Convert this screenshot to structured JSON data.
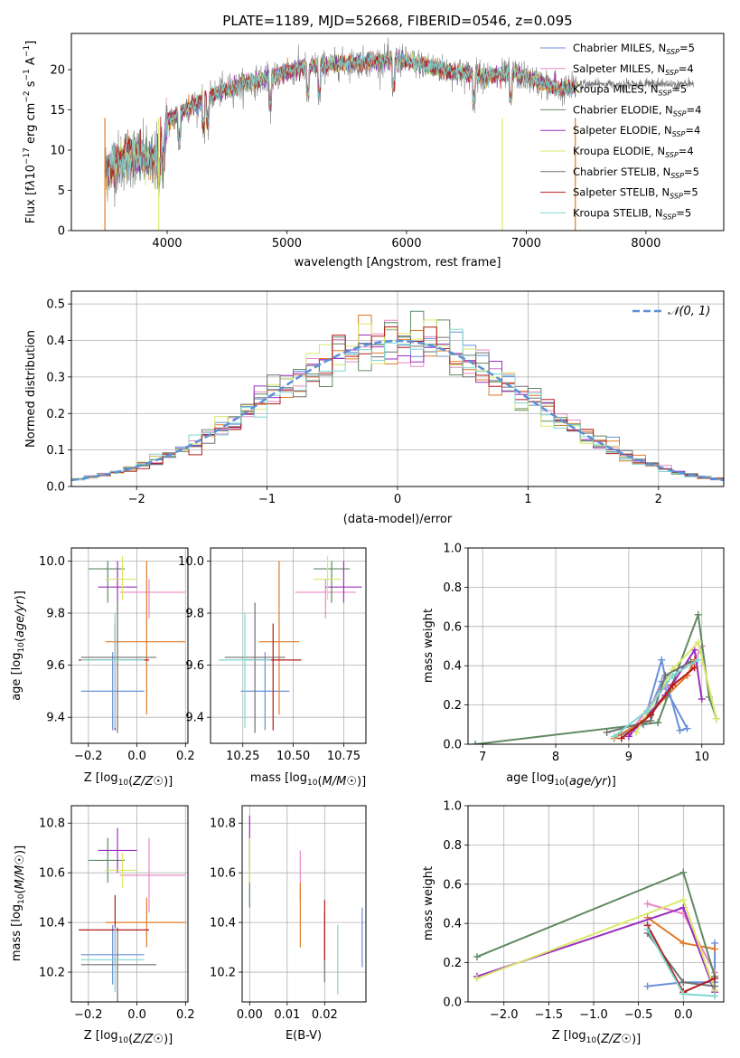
{
  "colors": {
    "chabrier_miles": "#6a8fd8",
    "salpeter_miles": "#e889c4",
    "kroupa_miles": "#e07a28",
    "chabrier_elodie": "#5f8a62",
    "salpeter_elodie": "#9b2fbf",
    "kroupa_elodie": "#d9e86a",
    "chabrier_stelib": "#707070",
    "salpeter_stelib": "#b31b1b",
    "kroupa_stelib": "#7fd6d0",
    "normal": "#5b8fd6"
  },
  "chart_data": [
    {
      "type": "line",
      "title": "PLATE=1189, MJD=52668, FIBERID=0546, z=0.095",
      "xlabel": "wavelength [Angstrom, rest frame]",
      "ylabel_html": "Flux [f<tspan font-style='italic'>λ</tspan>10<tspan dy='-6' font-size='9'>−17</tspan><tspan dy='6'> erg cm</tspan><tspan dy='-6' font-size='9'>−2</tspan><tspan dy='6'> s</tspan><tspan dy='-6' font-size='9'>−1</tspan><tspan dy='6'> A</tspan><tspan dy='-6' font-size='9'>−1</tspan><tspan dy='6'>]</tspan>",
      "xlim": [
        3200,
        8650
      ],
      "ylim": [
        0,
        24.5
      ],
      "xticks": [
        4000,
        5000,
        6000,
        7000,
        8000
      ],
      "yticks": [
        0,
        5,
        10,
        15,
        20
      ],
      "grid": false,
      "legend_position": "right",
      "series": [
        {
          "name": "Chabrier MILES, N",
          "sub": "SSP",
          "tail": "=5"
        },
        {
          "name": "Salpeter MILES, N",
          "sub": "SSP",
          "tail": "=4"
        },
        {
          "name": "Kroupa MILES, N",
          "sub": "SSP",
          "tail": "=5"
        },
        {
          "name": "Chabrier ELODIE, N",
          "sub": "SSP",
          "tail": "=4"
        },
        {
          "name": "Salpeter ELODIE, N",
          "sub": "SSP",
          "tail": "=4"
        },
        {
          "name": "Kroupa ELODIE, N",
          "sub": "SSP",
          "tail": "=4"
        },
        {
          "name": "Chabrier STELIB, N",
          "sub": "SSP",
          "tail": "=5"
        },
        {
          "name": "Salpeter STELIB, N",
          "sub": "SSP",
          "tail": "=5"
        },
        {
          "name": "Kroupa STELIB, N",
          "sub": "SSP",
          "tail": "=5"
        }
      ],
      "continuum": {
        "x": [
          3480,
          3600,
          3700,
          3800,
          3900,
          3950,
          4000,
          4100,
          4200,
          4300,
          4400,
          4500,
          4700,
          4900,
          5100,
          5300,
          5500,
          5700,
          5900,
          6100,
          6300,
          6500,
          6700,
          6900,
          7100,
          7300,
          7400
        ],
        "y": [
          7.5,
          8.5,
          9.5,
          9.0,
          8.5,
          11,
          13.5,
          14.5,
          15.5,
          16.2,
          17,
          17.6,
          18.4,
          19.2,
          20.2,
          20.5,
          20.8,
          21,
          21.2,
          20.8,
          20,
          19.5,
          19.2,
          19.5,
          18.5,
          17.5,
          17.8
        ]
      }
    },
    {
      "type": "histogram",
      "xlabel": "(data-model)/error",
      "ylabel": "Normed distribution",
      "xlim": [
        -2.5,
        2.5
      ],
      "ylim": [
        0,
        0.535
      ],
      "xticks": [
        -2,
        -1,
        0,
        1,
        2
      ],
      "yticks": [
        0.0,
        0.1,
        0.2,
        0.3,
        0.4,
        0.5
      ],
      "grid": true,
      "legend_position": "top-right",
      "legend": "𝒩(0, 1)",
      "bin_width": 0.1,
      "reference_curve": "normal pdf, mean 0, sigma 1"
    },
    {
      "type": "scatter",
      "xlabel": "Z [log₁₀(Z/Z☉)]",
      "ylabel": "age  [log₁₀(age/yr)]",
      "xlim": [
        -0.27,
        0.21
      ],
      "ylim": [
        9.3,
        10.05
      ],
      "xticks": [
        -0.2,
        0.0,
        0.2
      ],
      "yticks": [
        9.4,
        9.6,
        9.8,
        10.0
      ],
      "grid": true,
      "points": [
        {
          "x": -0.1,
          "y": 9.5,
          "xerr": [
            0.13,
            0.13
          ],
          "yerr": [
            0.15,
            0.15
          ],
          "model": "chabrier_miles"
        },
        {
          "x": 0.05,
          "y": 9.88,
          "xerr": [
            0.12,
            0.15
          ],
          "yerr": [
            0.1,
            0.05
          ],
          "model": "salpeter_miles"
        },
        {
          "x": 0.04,
          "y": 9.69,
          "xerr": [
            0.17,
            0.16
          ],
          "yerr": [
            0.28,
            0.31
          ],
          "model": "kroupa_miles"
        },
        {
          "x": -0.12,
          "y": 9.97,
          "xerr": [
            0.08,
            0.07
          ],
          "yerr": [
            0.13,
            0.03
          ],
          "model": "chabrier_elodie"
        },
        {
          "x": -0.08,
          "y": 9.9,
          "xerr": [
            0.08,
            0.08
          ],
          "yerr": [
            0.06,
            0.1
          ],
          "model": "salpeter_elodie"
        },
        {
          "x": -0.06,
          "y": 9.93,
          "xerr": [
            0.07,
            0.06
          ],
          "yerr": [
            0.08,
            0.09
          ],
          "model": "kroupa_elodie"
        },
        {
          "x": -0.08,
          "y": 9.63,
          "xerr": [
            0.15,
            0.16
          ],
          "yerr": [
            0.29,
            0.21
          ],
          "model": "chabrier_stelib"
        },
        {
          "x": -0.09,
          "y": 9.62,
          "xerr": [
            0.15,
            0.14
          ],
          "yerr": [
            0.27,
            0.14
          ],
          "model": "salpeter_stelib"
        },
        {
          "x": -0.09,
          "y": 9.62,
          "xerr": [
            0.14,
            0.12
          ],
          "yerr": [
            0.26,
            0.18
          ],
          "model": "kroupa_stelib"
        }
      ]
    },
    {
      "type": "scatter",
      "xlabel": "mass [log₁₀(M/M☉)]",
      "ylabel": "",
      "xlim": [
        10.09,
        10.86
      ],
      "ylim": [
        9.3,
        10.05
      ],
      "xticks": [
        10.25,
        10.5,
        10.75
      ],
      "yticks": [
        9.4,
        9.6,
        9.8,
        10.0
      ],
      "grid": true,
      "points": [
        {
          "x": 10.36,
          "y": 9.5,
          "xerr": [
            0.12,
            0.12
          ],
          "yerr": [
            0.15,
            0.15
          ],
          "model": "chabrier_miles"
        },
        {
          "x": 10.66,
          "y": 9.88,
          "xerr": [
            0.15,
            0.15
          ],
          "yerr": [
            0.1,
            0.05
          ],
          "model": "salpeter_miles"
        },
        {
          "x": 10.43,
          "y": 9.69,
          "xerr": [
            0.1,
            0.1
          ],
          "yerr": [
            0.28,
            0.31
          ],
          "model": "kroupa_miles"
        },
        {
          "x": 10.69,
          "y": 9.97,
          "xerr": [
            0.09,
            0.09
          ],
          "yerr": [
            0.13,
            0.03
          ],
          "model": "chabrier_elodie"
        },
        {
          "x": 10.75,
          "y": 9.9,
          "xerr": [
            0.09,
            0.09
          ],
          "yerr": [
            0.06,
            0.1
          ],
          "model": "salpeter_elodie"
        },
        {
          "x": 10.67,
          "y": 9.93,
          "xerr": [
            0.07,
            0.07
          ],
          "yerr": [
            0.08,
            0.09
          ],
          "model": "kroupa_elodie"
        },
        {
          "x": 10.31,
          "y": 9.63,
          "xerr": [
            0.15,
            0.15
          ],
          "yerr": [
            0.29,
            0.21
          ],
          "model": "chabrier_stelib"
        },
        {
          "x": 10.4,
          "y": 9.62,
          "xerr": [
            0.14,
            0.14
          ],
          "yerr": [
            0.27,
            0.14
          ],
          "model": "salpeter_stelib"
        },
        {
          "x": 10.26,
          "y": 9.62,
          "xerr": [
            0.13,
            0.13
          ],
          "yerr": [
            0.26,
            0.18
          ],
          "model": "kroupa_stelib"
        }
      ]
    },
    {
      "type": "line",
      "xlabel": "age  [log₁₀(age/yr)]",
      "ylabel": "mass weight",
      "xlim": [
        6.8,
        10.3
      ],
      "ylim": [
        0,
        1.0
      ],
      "xticks": [
        7,
        8,
        9,
        10
      ],
      "yticks": [
        0.0,
        0.2,
        0.4,
        0.6,
        0.8,
        1.0
      ],
      "grid": true,
      "series": [
        {
          "model": "chabrier_miles",
          "x": [
            8.9,
            9.2,
            9.45,
            9.5,
            9.7,
            9.8,
            9.45,
            9.2
          ],
          "y": [
            0.05,
            0.1,
            0.43,
            0.34,
            0.07,
            0.08,
            0.32,
            0.1
          ]
        },
        {
          "model": "salpeter_miles",
          "x": [
            9.0,
            9.45,
            9.8,
            10.0
          ],
          "y": [
            0.05,
            0.28,
            0.35,
            0.5
          ]
        },
        {
          "model": "kroupa_miles",
          "x": [
            8.8,
            9.2,
            9.5,
            9.8,
            9.9
          ],
          "y": [
            0.03,
            0.12,
            0.24,
            0.35,
            0.43
          ]
        },
        {
          "model": "chabrier_elodie",
          "x": [
            6.9,
            9.4,
            9.95,
            10.1,
            10.2
          ],
          "y": [
            0.0,
            0.11,
            0.66,
            0.24,
            0.13
          ]
        },
        {
          "model": "salpeter_elodie",
          "x": [
            9.0,
            9.5,
            9.9,
            10.0
          ],
          "y": [
            0.04,
            0.25,
            0.48,
            0.23
          ]
        },
        {
          "model": "kroupa_elodie",
          "x": [
            9.1,
            9.6,
            9.95,
            10.2
          ],
          "y": [
            0.06,
            0.38,
            0.52,
            0.13
          ]
        },
        {
          "model": "chabrier_stelib",
          "x": [
            8.7,
            9.3,
            9.5,
            9.85
          ],
          "y": [
            0.06,
            0.12,
            0.35,
            0.42
          ]
        },
        {
          "model": "salpeter_stelib",
          "x": [
            8.9,
            9.3,
            9.6,
            9.9
          ],
          "y": [
            0.03,
            0.15,
            0.3,
            0.39
          ]
        },
        {
          "model": "kroupa_stelib",
          "x": [
            8.8,
            9.25,
            9.6,
            9.95
          ],
          "y": [
            0.04,
            0.17,
            0.35,
            0.43
          ]
        }
      ]
    },
    {
      "type": "scatter",
      "xlabel": "Z [log₁₀(Z/Z☉)]",
      "ylabel": "mass [log₁₀(M/M☉)]",
      "xlim": [
        -0.27,
        0.21
      ],
      "ylim": [
        10.08,
        10.87
      ],
      "xticks": [
        -0.2,
        0.0,
        0.2
      ],
      "yticks": [
        10.2,
        10.4,
        10.6,
        10.8
      ],
      "grid": true,
      "points": [
        {
          "x": -0.1,
          "y": 10.27,
          "xerr": [
            0.13,
            0.13
          ],
          "yerr": [
            0.12,
            0.12
          ],
          "model": "chabrier_miles"
        },
        {
          "x": 0.05,
          "y": 10.59,
          "xerr": [
            0.12,
            0.15
          ],
          "yerr": [
            0.15,
            0.15
          ],
          "model": "salpeter_miles"
        },
        {
          "x": 0.04,
          "y": 10.4,
          "xerr": [
            0.17,
            0.16
          ],
          "yerr": [
            0.1,
            0.1
          ],
          "model": "kroupa_miles"
        },
        {
          "x": -0.12,
          "y": 10.65,
          "xerr": [
            0.08,
            0.07
          ],
          "yerr": [
            0.09,
            0.09
          ],
          "model": "chabrier_elodie"
        },
        {
          "x": -0.08,
          "y": 10.69,
          "xerr": [
            0.08,
            0.08
          ],
          "yerr": [
            0.09,
            0.09
          ],
          "model": "salpeter_elodie"
        },
        {
          "x": -0.06,
          "y": 10.61,
          "xerr": [
            0.07,
            0.06
          ],
          "yerr": [
            0.07,
            0.07
          ],
          "model": "kroupa_elodie"
        },
        {
          "x": -0.08,
          "y": 10.23,
          "xerr": [
            0.15,
            0.16
          ],
          "yerr": [
            0.15,
            0.15
          ],
          "model": "chabrier_stelib"
        },
        {
          "x": -0.09,
          "y": 10.37,
          "xerr": [
            0.15,
            0.14
          ],
          "yerr": [
            0.14,
            0.14
          ],
          "model": "salpeter_stelib"
        },
        {
          "x": -0.09,
          "y": 10.25,
          "xerr": [
            0.14,
            0.12
          ],
          "yerr": [
            0.13,
            0.13
          ],
          "model": "kroupa_stelib"
        }
      ]
    },
    {
      "type": "scatter",
      "xlabel": "E(B-V)",
      "ylabel": "",
      "xlim": [
        -0.002,
        0.031
      ],
      "ylim": [
        10.08,
        10.87
      ],
      "xticks": [
        0.0,
        0.01,
        0.02
      ],
      "yticks": [
        10.2,
        10.4,
        10.6,
        10.8
      ],
      "grid": true,
      "points": [
        {
          "x": 0.03,
          "y": 10.34,
          "yerr": [
            0.12,
            0.12
          ],
          "model": "chabrier_miles"
        },
        {
          "x": 0.0135,
          "y": 10.59,
          "yerr": [
            0.1,
            0.1
          ],
          "model": "salpeter_miles"
        },
        {
          "x": 0.0135,
          "y": 10.43,
          "yerr": [
            0.13,
            0.13
          ],
          "model": "kroupa_miles"
        },
        {
          "x": 0.0,
          "y": 10.6,
          "yerr": [
            0.14,
            0.14
          ],
          "model": "chabrier_elodie"
        },
        {
          "x": 0.0,
          "y": 10.72,
          "yerr": [
            0.11,
            0.11
          ],
          "model": "salpeter_elodie"
        },
        {
          "x": 0.0,
          "y": 10.65,
          "yerr": [
            0.09,
            0.09
          ],
          "model": "kroupa_elodie"
        },
        {
          "x": 0.02,
          "y": 10.3,
          "yerr": [
            0.14,
            0.14
          ],
          "model": "chabrier_stelib"
        },
        {
          "x": 0.02,
          "y": 10.37,
          "yerr": [
            0.12,
            0.12
          ],
          "model": "salpeter_stelib"
        },
        {
          "x": 0.0235,
          "y": 10.25,
          "yerr": [
            0.14,
            0.14
          ],
          "model": "kroupa_stelib"
        }
      ]
    },
    {
      "type": "line",
      "xlabel": "Z [log₁₀(Z/Z☉)]",
      "ylabel": "mass weight",
      "xlim": [
        -2.4,
        0.45
      ],
      "ylim": [
        0,
        1.0
      ],
      "xticks": [
        -2.0,
        -1.5,
        -1.0,
        -0.5,
        0.0
      ],
      "yticks": [
        0.0,
        0.2,
        0.4,
        0.6,
        0.8,
        1.0
      ],
      "grid": true,
      "series": [
        {
          "model": "chabrier_miles",
          "x": [
            -0.4,
            0.0,
            0.35,
            0.35
          ],
          "y": [
            0.08,
            0.1,
            0.1,
            0.3
          ]
        },
        {
          "model": "salpeter_miles",
          "x": [
            -0.4,
            0.0,
            0.35
          ],
          "y": [
            0.5,
            0.45,
            0.15
          ]
        },
        {
          "model": "kroupa_miles",
          "x": [
            -0.4,
            0.0,
            0.35
          ],
          "y": [
            0.43,
            0.3,
            0.27
          ]
        },
        {
          "model": "chabrier_elodie",
          "x": [
            -2.3,
            0.0,
            0.35
          ],
          "y": [
            0.23,
            0.66,
            0.13
          ]
        },
        {
          "model": "salpeter_elodie",
          "x": [
            -2.3,
            0.0,
            0.35
          ],
          "y": [
            0.13,
            0.48,
            0.05
          ]
        },
        {
          "model": "kroupa_elodie",
          "x": [
            -2.3,
            0.0,
            0.35
          ],
          "y": [
            0.12,
            0.52,
            0.06
          ]
        },
        {
          "model": "chabrier_stelib",
          "x": [
            -0.4,
            0.0,
            0.35
          ],
          "y": [
            0.35,
            0.1,
            0.08
          ]
        },
        {
          "model": "salpeter_stelib",
          "x": [
            -0.4,
            0.0,
            0.35
          ],
          "y": [
            0.39,
            0.05,
            0.12
          ]
        },
        {
          "model": "kroupa_stelib",
          "x": [
            -0.4,
            0.0,
            0.35
          ],
          "y": [
            0.37,
            0.04,
            0.03
          ]
        }
      ]
    }
  ]
}
